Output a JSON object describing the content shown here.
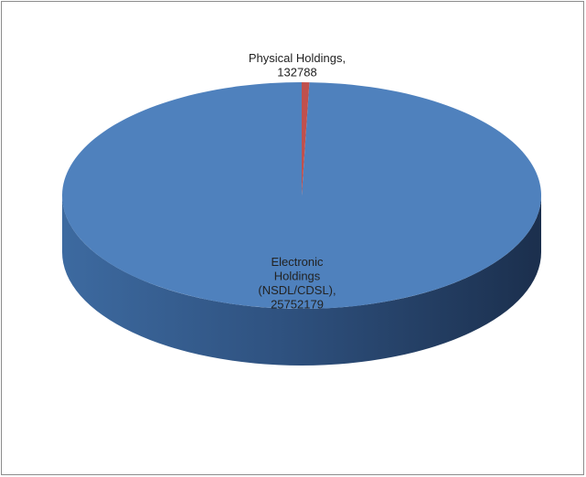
{
  "chart_data": {
    "type": "pie",
    "title": "",
    "categories": [
      "Electronic Holdings (NSDL/CDSL)",
      "Physical Holdings"
    ],
    "values": [
      25752179,
      132788
    ],
    "colors": [
      "#4f81bd",
      "#c0504d"
    ],
    "data_labels": [
      [
        "Electronic",
        "Holdings",
        "(NSDL/CDSL),",
        "25752179"
      ],
      [
        "Physical Holdings,",
        "132788"
      ]
    ],
    "legend": "none",
    "style": "3d"
  }
}
